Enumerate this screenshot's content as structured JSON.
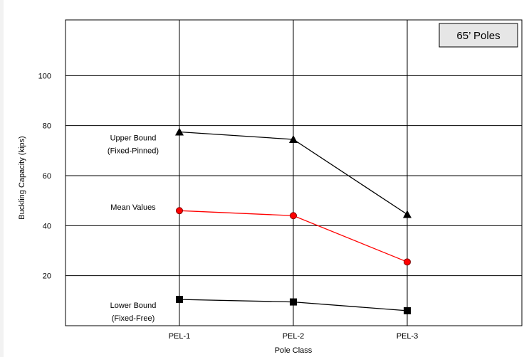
{
  "chart_data": {
    "type": "line",
    "title": "",
    "badge": "65’ Poles",
    "xlabel": "Pole Class",
    "ylabel": "Buckling Capacity (kips)",
    "categories": [
      "PEL-1",
      "PEL-2",
      "PEL-3"
    ],
    "ylim": [
      0,
      120
    ],
    "yticks": [
      20,
      40,
      60,
      80,
      100
    ],
    "grid": true,
    "series": [
      {
        "name": "Upper Bound (Fixed-Pinned)",
        "label_lines": [
          "Upper Bound",
          "(Fixed-Pinned)"
        ],
        "values": [
          77.5,
          74.5,
          44.5
        ],
        "marker": "triangle",
        "line_color": "#000000",
        "marker_color": "#000000"
      },
      {
        "name": "Mean Values",
        "label_lines": [
          "Mean Values"
        ],
        "values": [
          46,
          44,
          25.5
        ],
        "marker": "circle",
        "line_color": "#ff0000",
        "marker_color": "#ff0000"
      },
      {
        "name": "Lower Bound (Fixed-Free)",
        "label_lines": [
          "Lower Bound",
          "(Fixed-Free)"
        ],
        "values": [
          10.5,
          9.5,
          6
        ],
        "marker": "square",
        "line_color": "#000000",
        "marker_color": "#000000"
      }
    ]
  }
}
